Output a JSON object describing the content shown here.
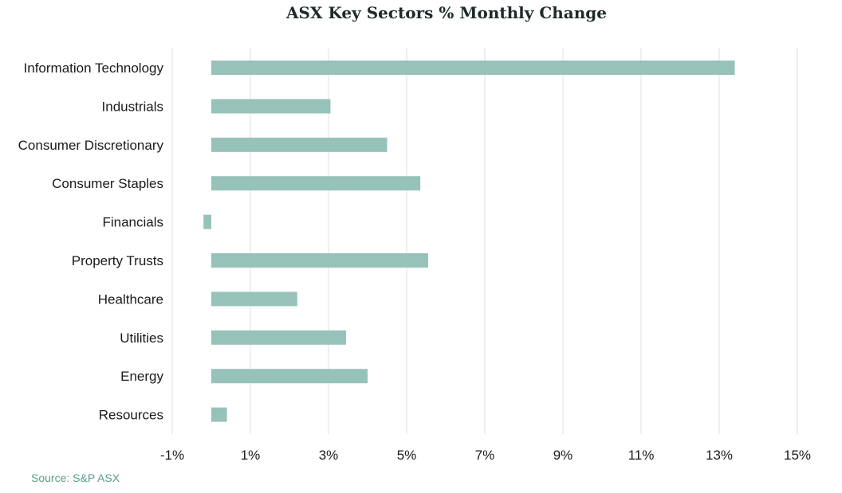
{
  "source": "Source: S&P ASX",
  "chart_data": {
    "type": "bar",
    "orientation": "horizontal",
    "title": "ASX Key Sectors % Monthly Change",
    "xlabel": "",
    "ylabel": "",
    "categories": [
      "Information Technology",
      "Industrials",
      "Consumer Discretionary",
      "Consumer Staples",
      "Financials",
      "Property Trusts",
      "Healthcare",
      "Utilities",
      "Energy",
      "Resources"
    ],
    "values": [
      13.4,
      3.05,
      4.5,
      5.35,
      -0.2,
      5.55,
      2.2,
      3.45,
      4.0,
      0.4
    ],
    "xlim": [
      -1,
      15
    ],
    "x_ticks": [
      -1,
      1,
      3,
      5,
      7,
      9,
      11,
      13,
      15
    ],
    "tick_labels": [
      "-1%",
      "1%",
      "3%",
      "5%",
      "7%",
      "9%",
      "11%",
      "13%",
      "15%"
    ],
    "grid": "vertical",
    "legend": "none",
    "colors": {
      "bar": "#97c2b9",
      "grid": "#d8e2df",
      "title": "#1f2a2a",
      "source": "#5a9c8c"
    }
  }
}
